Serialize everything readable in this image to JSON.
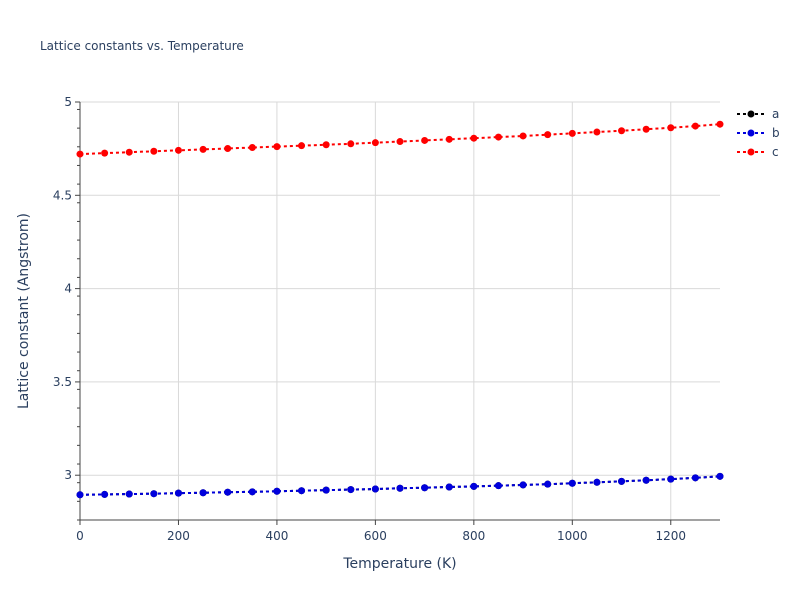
{
  "chart_data": {
    "type": "line",
    "title": "Lattice constants vs. Temperature",
    "xlabel": "Temperature (K)",
    "ylabel": "Lattice constant (Angstrom)",
    "xlim": [
      0,
      1300
    ],
    "ylim": [
      2.76,
      5.0
    ],
    "xticks": [
      0,
      200,
      400,
      600,
      800,
      1000,
      1200
    ],
    "yticks": [
      3,
      3.5,
      4,
      4.5,
      5
    ],
    "xtick_labels": [
      "0",
      "200",
      "400",
      "600",
      "800",
      "1000",
      "1200"
    ],
    "ytick_labels": [
      "3",
      "3.5",
      "4",
      "4.5",
      "5"
    ],
    "grid": true,
    "legend_position": "top-right",
    "x": [
      0,
      50,
      100,
      150,
      200,
      250,
      300,
      350,
      400,
      450,
      500,
      550,
      600,
      650,
      700,
      750,
      800,
      850,
      900,
      950,
      1000,
      1050,
      1100,
      1150,
      1200,
      1250,
      1300
    ],
    "series": [
      {
        "name": "a",
        "color": "#000000",
        "line_style": "dot",
        "values": [
          2.895,
          2.897,
          2.899,
          2.901,
          2.904,
          2.906,
          2.909,
          2.911,
          2.914,
          2.917,
          2.92,
          2.923,
          2.926,
          2.93,
          2.933,
          2.937,
          2.94,
          2.944,
          2.948,
          2.952,
          2.957,
          2.962,
          2.967,
          2.973,
          2.979,
          2.986,
          2.994
        ]
      },
      {
        "name": "b",
        "color": "#0000dd",
        "line_style": "dot",
        "values": [
          2.895,
          2.897,
          2.899,
          2.901,
          2.904,
          2.906,
          2.909,
          2.911,
          2.914,
          2.917,
          2.92,
          2.923,
          2.926,
          2.93,
          2.933,
          2.937,
          2.94,
          2.944,
          2.948,
          2.952,
          2.957,
          2.962,
          2.967,
          2.973,
          2.979,
          2.986,
          2.994
        ]
      },
      {
        "name": "c",
        "color": "#ff0000",
        "line_style": "dot",
        "values": [
          4.721,
          4.726,
          4.731,
          4.736,
          4.741,
          4.746,
          4.751,
          4.756,
          4.761,
          4.766,
          4.771,
          4.776,
          4.782,
          4.788,
          4.794,
          4.8,
          4.806,
          4.812,
          4.818,
          4.825,
          4.832,
          4.839,
          4.846,
          4.854,
          4.862,
          4.871,
          4.881
        ]
      }
    ]
  }
}
